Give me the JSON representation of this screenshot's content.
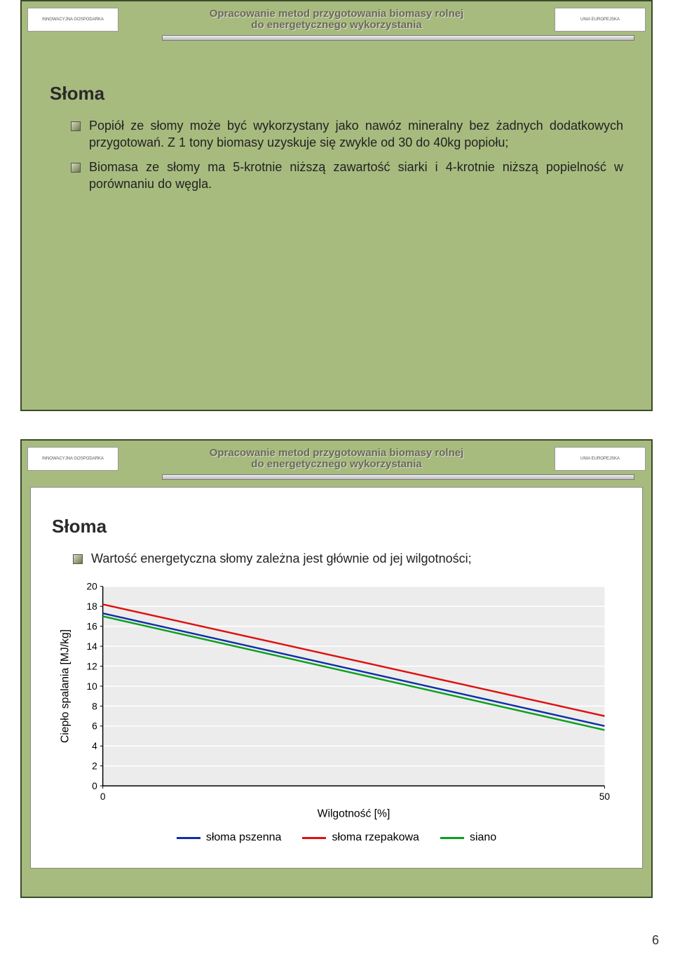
{
  "header": {
    "title_line1": "Opracowanie metod przygotowania biomasy rolnej",
    "title_line2": "do energetycznego wykorzystania",
    "logo_left_text": "INNOWACYJNA GOSPODARKA",
    "logo_right_text": "UNIA EUROPEJSKA"
  },
  "slide1": {
    "title": "Słoma",
    "bullets": [
      "Popiół ze słomy może być wykorzystany jako nawóz mineralny bez żadnych dodatkowych przygotowań. Z 1 tony biomasy uzyskuje się zwykle od 30 do 40kg popiołu;",
      "Biomasa ze słomy ma 5-krotnie niższą zawartość siarki i 4-krotnie niższą popielność w porównaniu do węgla."
    ]
  },
  "slide2": {
    "title": "Słoma",
    "bullets": [
      "Wartość energetyczna słomy zależna jest głównie od jej wilgotności;"
    ],
    "chart": {
      "type": "line",
      "y_label": "Ciepło spalania [MJ/kg]",
      "x_label": "Wilgotność [%]",
      "y_ticks": [
        0,
        2,
        4,
        6,
        8,
        10,
        12,
        14,
        16,
        18,
        20
      ],
      "x_ticks": [
        0,
        50
      ],
      "ylim": [
        0,
        20
      ],
      "xlim": [
        0,
        50
      ],
      "plot_bg": "#ececec",
      "grid_color": "#ffffff",
      "axis_color": "#000000",
      "tick_fontsize": 14,
      "label_fontsize": 16,
      "line_width": 2.5,
      "series": [
        {
          "name": "słoma pszenna",
          "color": "#1030a6",
          "y0": 17.3,
          "y1": 6.0
        },
        {
          "name": "słoma rzepakowa",
          "color": "#e01010",
          "y0": 18.2,
          "y1": 7.0
        },
        {
          "name": "siano",
          "color": "#0aa020",
          "y0": 17.0,
          "y1": 5.6
        }
      ]
    }
  },
  "page_number": "6"
}
